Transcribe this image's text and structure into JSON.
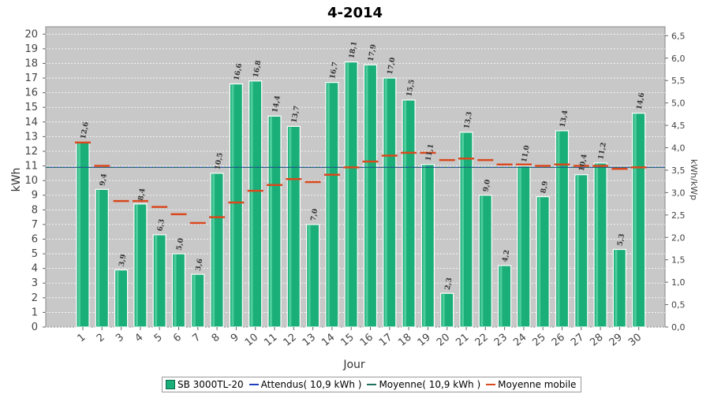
{
  "chart_data": {
    "type": "bar",
    "title": "4-2014",
    "xlabel": "Jour",
    "ylabel": "kWh",
    "y2label": "kWh/kWp",
    "categories": [
      "1",
      "2",
      "3",
      "4",
      "5",
      "6",
      "7",
      "8",
      "9",
      "10",
      "11",
      "12",
      "13",
      "14",
      "15",
      "16",
      "17",
      "18",
      "19",
      "20",
      "21",
      "22",
      "23",
      "24",
      "25",
      "26",
      "27",
      "28",
      "29",
      "30"
    ],
    "ylim": [
      0,
      20.5
    ],
    "y2lim": [
      0,
      6.7
    ],
    "yticks": [
      "0",
      "1",
      "2",
      "3",
      "4",
      "5",
      "6",
      "7",
      "8",
      "9",
      "10",
      "11",
      "12",
      "13",
      "14",
      "15",
      "16",
      "17",
      "18",
      "19",
      "20"
    ],
    "y2ticks": [
      "0,0",
      "0,5",
      "1,0",
      "1,5",
      "2,0",
      "2,5",
      "3,0",
      "3,5",
      "4,0",
      "4,5",
      "5,0",
      "5,5",
      "6,0",
      "6,5"
    ],
    "series": [
      {
        "name": "SB 3000TL-20",
        "values": [
          12.6,
          9.4,
          3.9,
          8.4,
          6.3,
          5.0,
          3.6,
          10.5,
          16.6,
          16.8,
          14.4,
          13.7,
          7.0,
          16.7,
          18.1,
          17.9,
          17.0,
          15.5,
          11.1,
          2.3,
          13.3,
          9.0,
          4.2,
          11.0,
          8.9,
          13.4,
          10.4,
          11.2,
          5.3,
          14.6
        ]
      },
      {
        "name": "Moyenne mobile",
        "values": [
          12.6,
          11.0,
          8.6,
          8.6,
          8.2,
          7.7,
          7.1,
          7.5,
          8.5,
          9.3,
          9.7,
          10.1,
          9.9,
          10.4,
          10.9,
          11.3,
          11.7,
          11.9,
          11.9,
          11.4,
          11.5,
          11.4,
          11.1,
          11.1,
          11.0,
          11.1,
          11.0,
          11.0,
          10.8,
          10.9
        ]
      }
    ],
    "labels": [
      "12,6",
      "9,4",
      "3,9",
      "8,4",
      "6,3",
      "5,0",
      "3,6",
      "10,5",
      "16,6",
      "16,8",
      "14,4",
      "13,7",
      "7,0",
      "16,7",
      "18,1",
      "17,9",
      "17,0",
      "15,5",
      "11,1",
      "2,3",
      "13,3",
      "9,0",
      "4,2",
      "11,0",
      "8,9",
      "13,4",
      "10,4",
      "11,2",
      "5,3",
      "14,6"
    ],
    "reference_lines": [
      {
        "name": "Attendus( 10,9 kWh )",
        "value": 10.9,
        "color": "#1f3fbf"
      },
      {
        "name": "Moyenne( 10,9 kWh )",
        "value": 10.9,
        "color": "#1f6f5f"
      }
    ],
    "colors": {
      "bar": "#1aae78",
      "bar_edge": "#ffffff",
      "moving_avg": "#d9481e",
      "plot_bg": "#c8c8c8"
    },
    "grid": true,
    "legend_position": "bottom"
  },
  "legend": {
    "items": [
      "SB 3000TL-20",
      "Attendus( 10,9 kWh )",
      "Moyenne( 10,9 kWh )",
      "Moyenne mobile"
    ]
  }
}
